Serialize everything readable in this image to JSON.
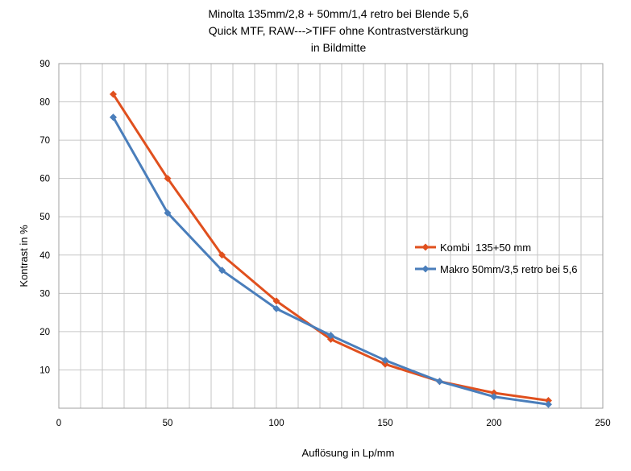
{
  "chart_data": {
    "type": "line",
    "title": [
      "Minolta 135mm/2,8 + 50mm/1,4 retro bei Blende 5,6",
      "Quick MTF,   RAW--->TIFF  ohne Kontrastverstärkung",
      "in Bildmitte"
    ],
    "xlabel": "Auflösung in Lp/mm",
    "ylabel": "Kontrast in %",
    "xlim": [
      0,
      250
    ],
    "ylim": [
      0,
      90
    ],
    "xticks": [
      0,
      50,
      100,
      150,
      200,
      250
    ],
    "yticks": [
      10,
      20,
      30,
      40,
      50,
      60,
      70,
      80,
      90
    ],
    "grid": "vertical and horizontal",
    "legend_position": "right",
    "series": [
      {
        "name": "Kombi  135+50 mm",
        "color": "#e0501e",
        "marker": "diamond",
        "x": [
          25,
          50,
          75,
          100,
          125,
          150,
          175,
          200,
          225
        ],
        "y": [
          82,
          60,
          40,
          28,
          18,
          11.5,
          7,
          4,
          2
        ]
      },
      {
        "name": "Makro 50mm/3,5 retro bei 5,6",
        "color": "#4a7ebb",
        "marker": "diamond",
        "x": [
          25,
          50,
          75,
          100,
          125,
          150,
          175,
          200,
          225
        ],
        "y": [
          76,
          51,
          36,
          26,
          19,
          12.5,
          7,
          3,
          1
        ]
      }
    ]
  }
}
